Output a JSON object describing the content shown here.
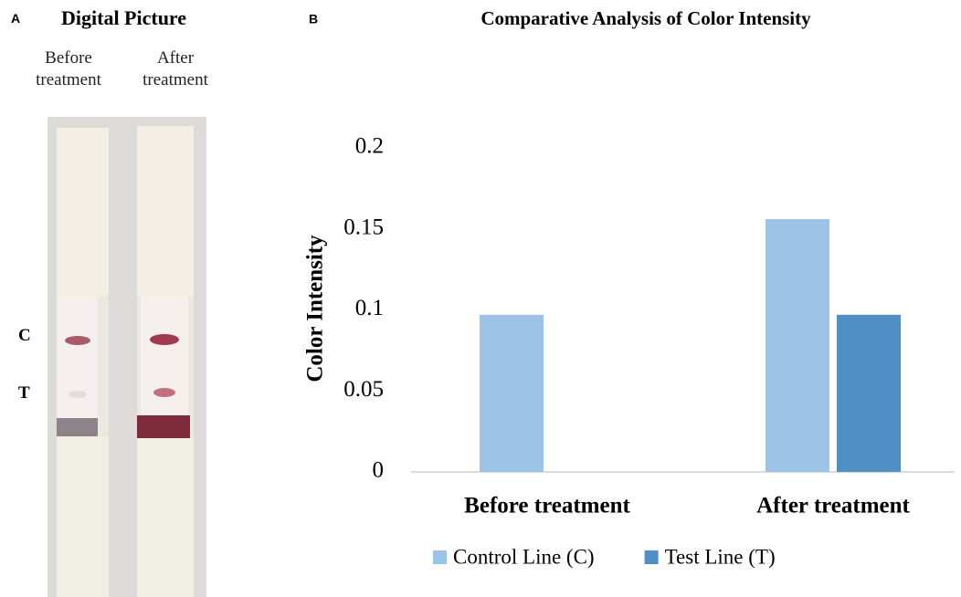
{
  "panel_a": {
    "label": "A",
    "title": "Digital Picture",
    "columns": [
      "Before treatment",
      "After treatment"
    ],
    "line_labels": [
      "C",
      "T"
    ]
  },
  "chart_data": {
    "type": "bar",
    "label": "B",
    "title": "Comparative Analysis of Color Intensity",
    "y_label": "Color Intensity",
    "categories": [
      "Before treatment",
      "After treatment"
    ],
    "series": [
      {
        "name": "Control Line (C)",
        "color": "#9dc3e6",
        "values": [
          0.097,
          0.156
        ]
      },
      {
        "name": "Test Line (T)",
        "color": "#4f8fc4",
        "values": [
          0,
          0.097
        ]
      }
    ],
    "ylim": [
      0,
      0.2
    ],
    "yticks": [
      0,
      0.05,
      0.1,
      0.15,
      0.2
    ],
    "grid": false,
    "legend": "bottom"
  }
}
